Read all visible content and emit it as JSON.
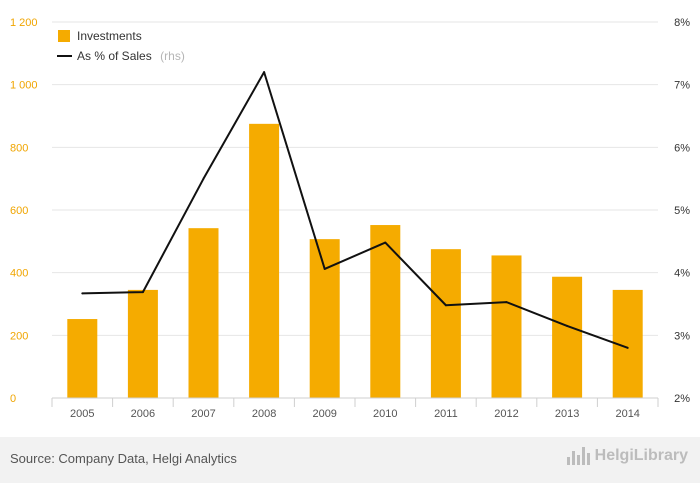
{
  "chart_data": {
    "type": "bar",
    "categories": [
      "2005",
      "2006",
      "2007",
      "2008",
      "2009",
      "2010",
      "2011",
      "2012",
      "2013",
      "2014"
    ],
    "series": [
      {
        "name": "Investments",
        "type": "bar",
        "axis": "left",
        "color": "#f5ab00",
        "values": [
          252,
          345,
          542,
          875,
          507,
          552,
          475,
          455,
          387,
          345
        ]
      },
      {
        "name": "As % of Sales",
        "name_suffix": "(rhs)",
        "type": "line",
        "axis": "right",
        "color": "#111111",
        "values": [
          3.67,
          3.69,
          5.5,
          7.2,
          4.06,
          4.48,
          3.48,
          3.53,
          3.15,
          2.8
        ]
      }
    ],
    "y_left": {
      "lim": [
        0,
        1200
      ],
      "ticks": [
        0,
        200,
        400,
        600,
        800,
        1000,
        1200
      ],
      "tick_labels": [
        "0",
        "200",
        "400",
        "600",
        "800",
        "1 000",
        "1 200"
      ]
    },
    "y_right": {
      "lim": [
        2,
        8
      ],
      "ticks": [
        2,
        3,
        4,
        5,
        6,
        7,
        8
      ],
      "tick_labels": [
        "2%",
        "3%",
        "4%",
        "5%",
        "6%",
        "7%",
        "8%"
      ]
    },
    "grid": true,
    "legend_position": "top-left",
    "title": "",
    "xlabel": "",
    "ylabel": ""
  },
  "footer": {
    "source": "Source: Company Data, Helgi Analytics",
    "logo_text": "HelgiLibrary"
  }
}
